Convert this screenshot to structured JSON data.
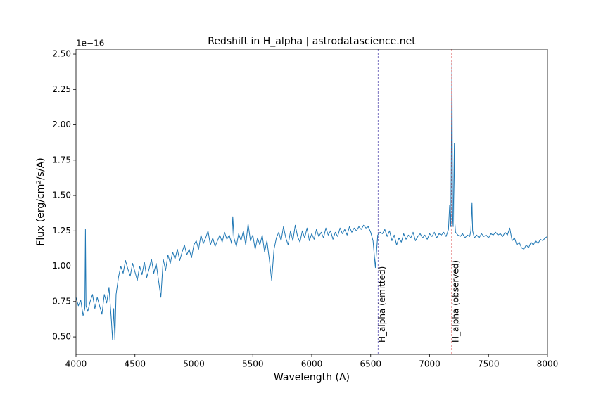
{
  "chart_data": {
    "type": "line",
    "title": "Redshift in H_alpha | astrodatascience.net",
    "xlabel": "Wavelength (A)",
    "ylabel": "Flux (erg/cm²/s/A)",
    "y_offset_label": "1e−16",
    "color": "#1f77b4",
    "xlim": [
      4000,
      8000
    ],
    "ylim": [
      0.376,
      2.535
    ],
    "xticks": [
      4000,
      4500,
      5000,
      5500,
      6000,
      6500,
      7000,
      7500,
      8000
    ],
    "yticks": [
      {
        "value": 0.5,
        "label": "0.50"
      },
      {
        "value": 0.75,
        "label": "0.75"
      },
      {
        "value": 1.0,
        "label": "1.00"
      },
      {
        "value": 1.25,
        "label": "1.25"
      },
      {
        "value": 1.5,
        "label": "1.50"
      },
      {
        "value": 1.75,
        "label": "1.75"
      },
      {
        "value": 2.0,
        "label": "2.00"
      },
      {
        "value": 2.25,
        "label": "2.25"
      },
      {
        "value": 2.5,
        "label": "2.50"
      }
    ],
    "vlines": [
      {
        "x": 6563,
        "color": "#5a4fb0",
        "label": "H_alpha (emitted)"
      },
      {
        "x": 7188,
        "color": "#d62728",
        "label": "H_alpha (observed)"
      }
    ],
    "x": [
      4000,
      4020,
      4040,
      4060,
      4075,
      4080,
      4085,
      4100,
      4120,
      4140,
      4160,
      4180,
      4200,
      4220,
      4240,
      4260,
      4280,
      4300,
      4310,
      4320,
      4330,
      4340,
      4360,
      4380,
      4400,
      4420,
      4440,
      4460,
      4480,
      4500,
      4520,
      4540,
      4560,
      4580,
      4600,
      4620,
      4640,
      4660,
      4680,
      4700,
      4720,
      4740,
      4760,
      4780,
      4800,
      4820,
      4840,
      4860,
      4880,
      4900,
      4920,
      4940,
      4960,
      4980,
      5000,
      5020,
      5040,
      5060,
      5080,
      5100,
      5120,
      5140,
      5160,
      5180,
      5200,
      5220,
      5240,
      5260,
      5280,
      5300,
      5320,
      5330,
      5340,
      5360,
      5380,
      5400,
      5420,
      5440,
      5460,
      5480,
      5500,
      5520,
      5540,
      5560,
      5580,
      5600,
      5620,
      5640,
      5660,
      5680,
      5700,
      5720,
      5740,
      5760,
      5780,
      5800,
      5820,
      5840,
      5860,
      5880,
      5900,
      5920,
      5940,
      5960,
      5980,
      6000,
      6020,
      6040,
      6060,
      6080,
      6100,
      6120,
      6140,
      6160,
      6180,
      6200,
      6220,
      6240,
      6260,
      6280,
      6300,
      6320,
      6340,
      6360,
      6380,
      6400,
      6420,
      6440,
      6460,
      6480,
      6500,
      6520,
      6540,
      6560,
      6580,
      6600,
      6620,
      6640,
      6660,
      6680,
      6700,
      6720,
      6740,
      6760,
      6780,
      6800,
      6820,
      6840,
      6860,
      6880,
      6900,
      6920,
      6940,
      6960,
      6980,
      7000,
      7020,
      7040,
      7060,
      7080,
      7100,
      7120,
      7140,
      7160,
      7170,
      7180,
      7190,
      7195,
      7200,
      7210,
      7215,
      7220,
      7240,
      7260,
      7280,
      7300,
      7320,
      7340,
      7350,
      7360,
      7365,
      7380,
      7400,
      7420,
      7440,
      7460,
      7480,
      7500,
      7520,
      7540,
      7560,
      7580,
      7600,
      7620,
      7640,
      7660,
      7680,
      7700,
      7720,
      7740,
      7760,
      7780,
      7800,
      7820,
      7840,
      7860,
      7880,
      7900,
      7920,
      7940,
      7960,
      7980,
      8000
    ],
    "values": [
      0.78,
      0.72,
      0.76,
      0.65,
      0.7,
      1.26,
      0.72,
      0.68,
      0.75,
      0.8,
      0.7,
      0.78,
      0.72,
      0.66,
      0.8,
      0.74,
      0.85,
      0.62,
      0.48,
      0.7,
      0.48,
      0.8,
      0.92,
      1.0,
      0.95,
      1.04,
      0.98,
      0.93,
      1.02,
      0.96,
      0.9,
      1.0,
      0.94,
      1.03,
      0.92,
      0.98,
      1.05,
      0.95,
      1.02,
      0.9,
      0.78,
      1.05,
      0.97,
      1.08,
      1.02,
      1.1,
      1.05,
      1.12,
      1.04,
      1.1,
      1.15,
      1.08,
      1.12,
      1.06,
      1.15,
      1.18,
      1.12,
      1.22,
      1.16,
      1.2,
      1.25,
      1.15,
      1.2,
      1.14,
      1.18,
      1.22,
      1.17,
      1.24,
      1.19,
      1.22,
      1.16,
      1.35,
      1.2,
      1.14,
      1.23,
      1.18,
      1.25,
      1.15,
      1.3,
      1.18,
      1.22,
      1.12,
      1.2,
      1.15,
      1.22,
      1.1,
      1.18,
      1.05,
      0.9,
      1.12,
      1.2,
      1.24,
      1.18,
      1.28,
      1.2,
      1.15,
      1.25,
      1.18,
      1.29,
      1.21,
      1.17,
      1.25,
      1.2,
      1.27,
      1.18,
      1.23,
      1.19,
      1.26,
      1.21,
      1.24,
      1.2,
      1.27,
      1.22,
      1.25,
      1.19,
      1.24,
      1.21,
      1.27,
      1.23,
      1.26,
      1.22,
      1.28,
      1.24,
      1.27,
      1.25,
      1.28,
      1.26,
      1.29,
      1.27,
      1.28,
      1.24,
      1.18,
      0.99,
      1.22,
      1.24,
      1.23,
      1.26,
      1.21,
      1.25,
      1.18,
      1.22,
      1.15,
      1.2,
      1.17,
      1.23,
      1.19,
      1.22,
      1.2,
      1.24,
      1.18,
      1.21,
      1.23,
      1.2,
      1.22,
      1.19,
      1.23,
      1.21,
      1.24,
      1.2,
      1.23,
      1.22,
      1.24,
      1.21,
      1.26,
      1.43,
      1.28,
      2.45,
      1.35,
      1.28,
      1.87,
      1.3,
      1.24,
      1.22,
      1.21,
      1.23,
      1.2,
      1.22,
      1.21,
      1.25,
      1.45,
      1.25,
      1.2,
      1.22,
      1.2,
      1.23,
      1.21,
      1.22,
      1.2,
      1.23,
      1.22,
      1.24,
      1.22,
      1.23,
      1.21,
      1.24,
      1.22,
      1.27,
      1.18,
      1.2,
      1.15,
      1.17,
      1.13,
      1.12,
      1.15,
      1.13,
      1.17,
      1.15,
      1.18,
      1.16,
      1.19,
      1.18,
      1.2,
      1.21
    ]
  }
}
